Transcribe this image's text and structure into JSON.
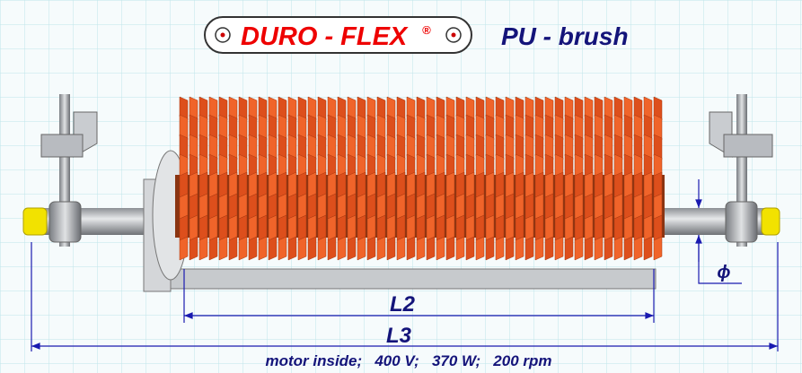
{
  "logo": {
    "text": "DURO - FLEX",
    "mark": "®"
  },
  "product": "PU - brush",
  "dimensions": {
    "length_2": "L2",
    "length_3": "L3",
    "diameter": "ϕ"
  },
  "specs": "motor inside;   400 V;   370 W;   200 rpm"
}
